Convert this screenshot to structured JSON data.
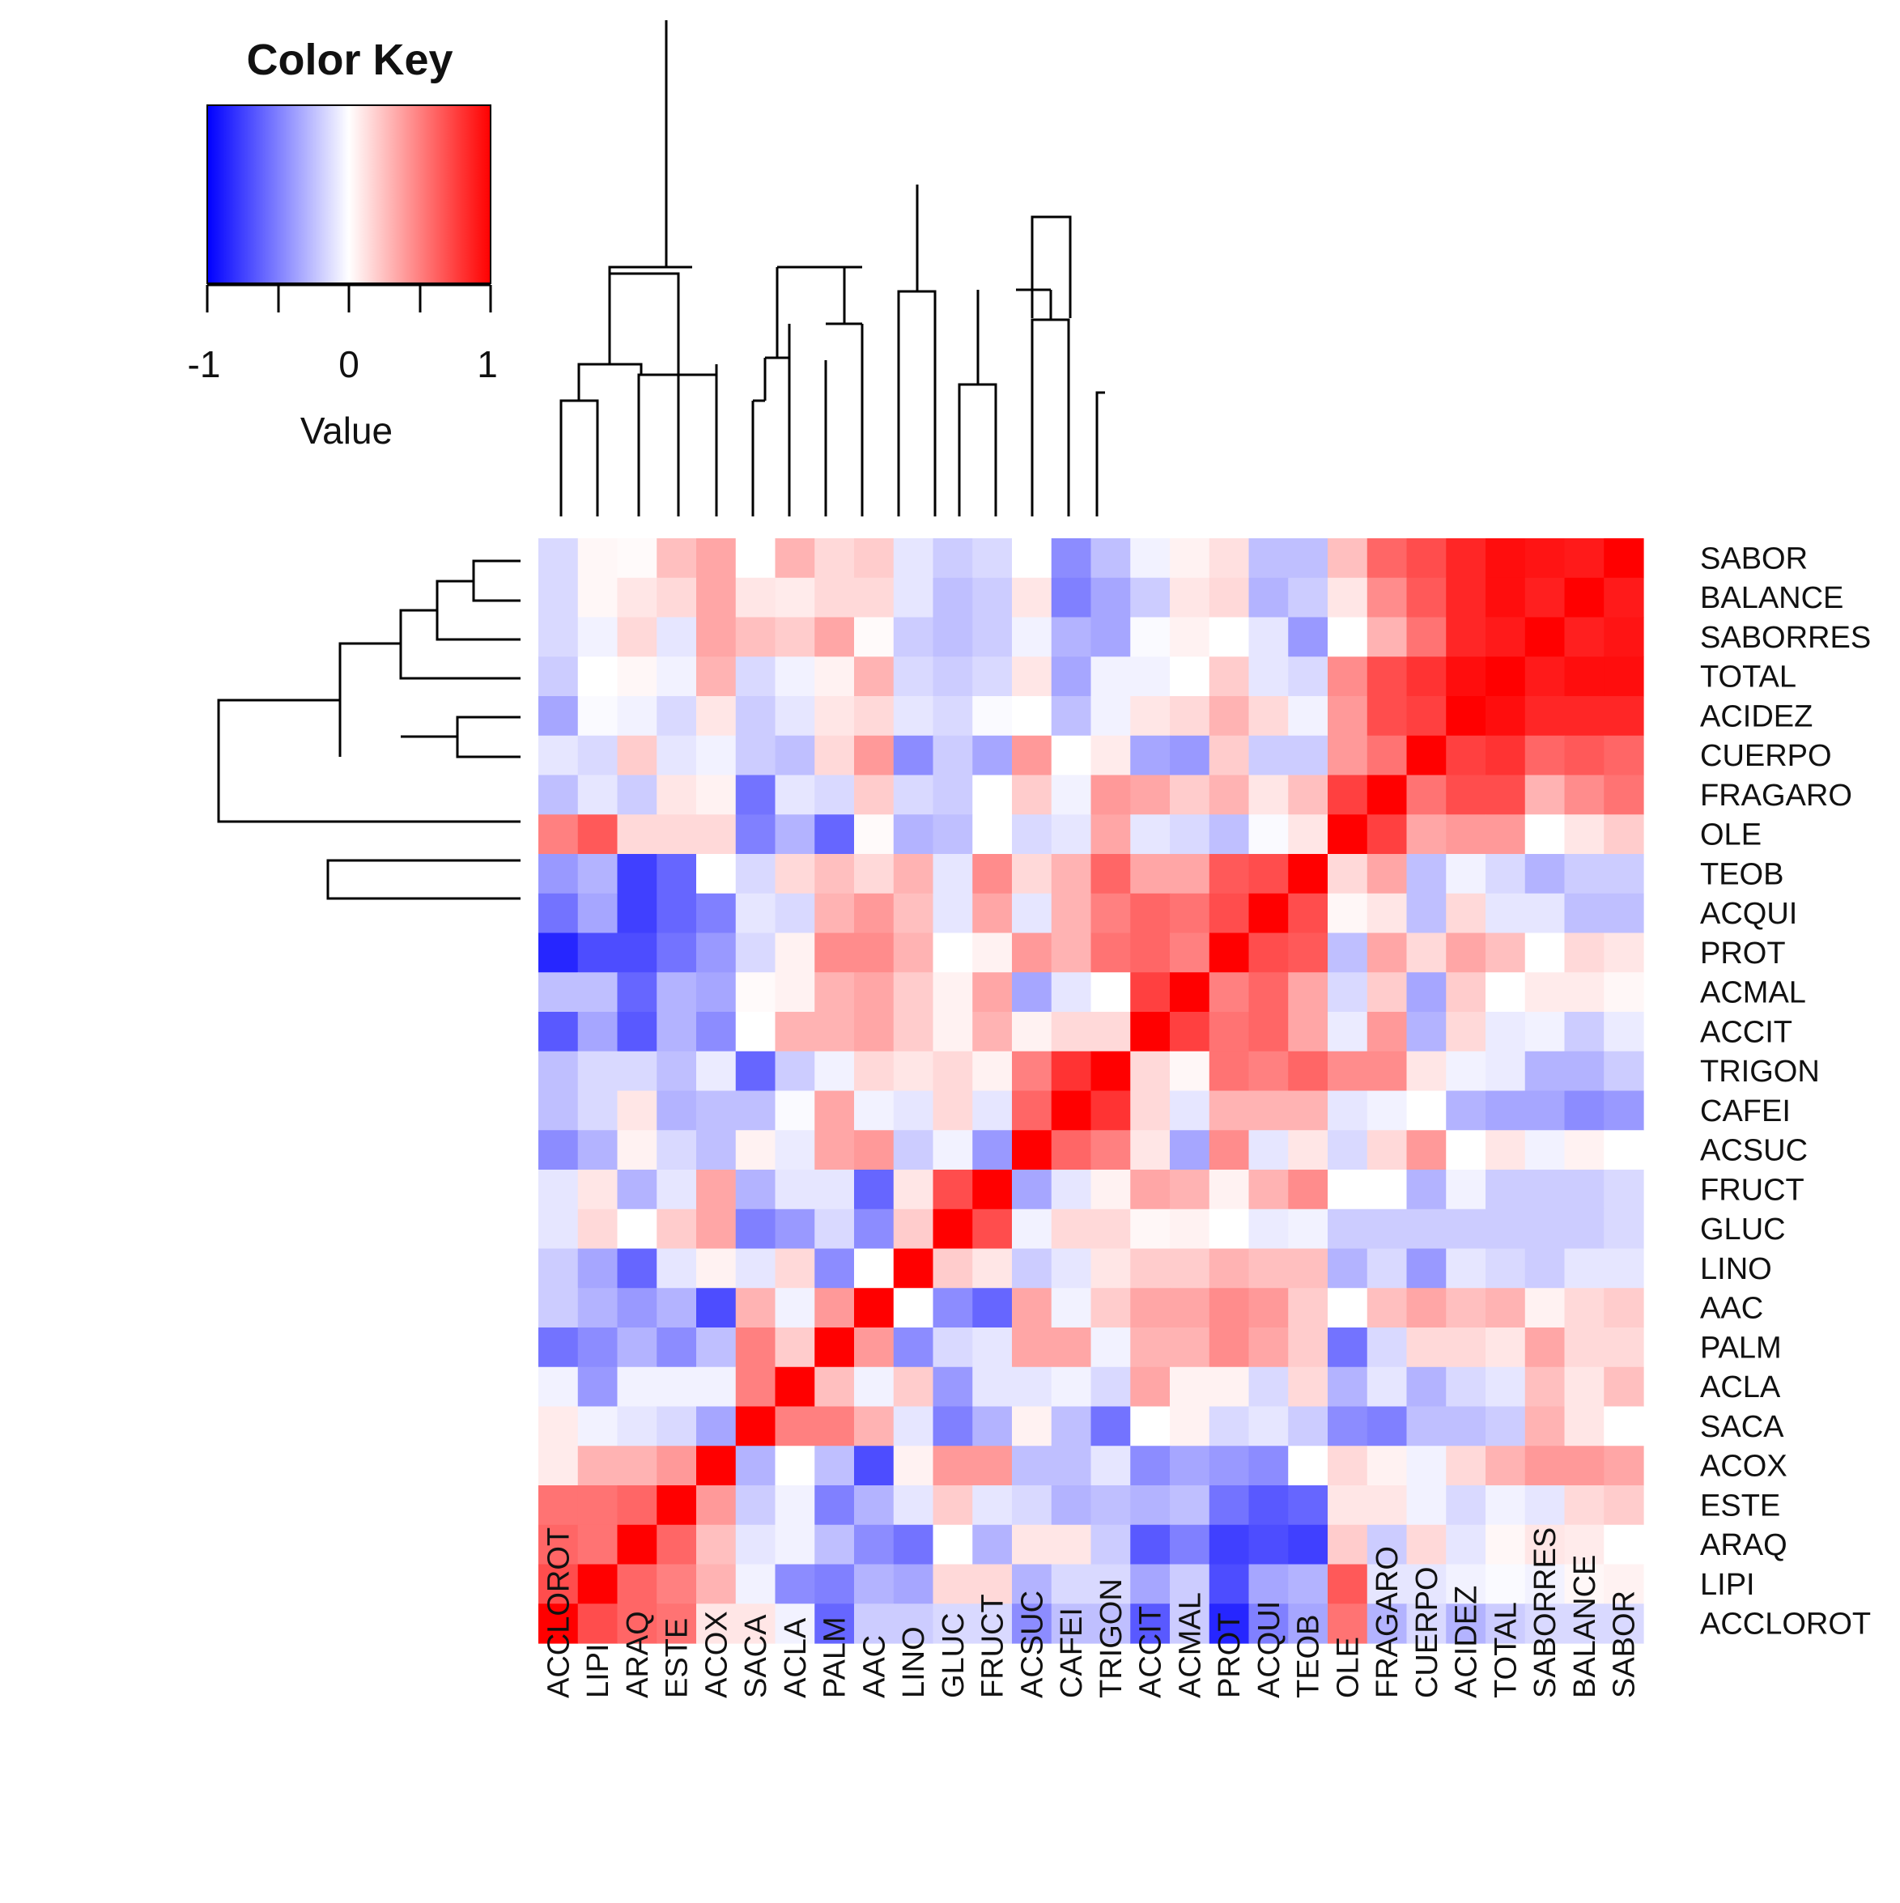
{
  "chart_data": {
    "type": "heatmap",
    "subtype": "clustered correlation matrix",
    "columns": [
      "ACCLOROT",
      "LIPI",
      "ARAQ",
      "ESTE",
      "ACOX",
      "SACA",
      "ACLA",
      "PALM",
      "AAC",
      "LINO",
      "GLUC",
      "FRUCT",
      "ACSUC",
      "CAFEI",
      "TRIGON",
      "ACCIT",
      "ACMAL",
      "PROT",
      "ACQUI",
      "TEOB",
      "OLE",
      "FRAGARO",
      "CUERPO",
      "ACIDEZ",
      "TOTAL",
      "SABORRES",
      "BALANCE",
      "SABOR"
    ],
    "rows": [
      "SABOR",
      "BALANCE",
      "SABORRES",
      "TOTAL",
      "ACIDEZ",
      "CUERPO",
      "FRAGARO",
      "OLE",
      "TEOB",
      "ACQUI",
      "PROT",
      "ACMAL",
      "ACCIT",
      "TRIGON",
      "CAFEI",
      "ACSUC",
      "FRUCT",
      "GLUC",
      "LINO",
      "AAC",
      "PALM",
      "ACLA",
      "SACA",
      "ACOX",
      "ESTE",
      "ARAQ",
      "LIPI",
      "ACCLOROT"
    ],
    "value_range": [
      -1,
      1
    ],
    "values": [
      [
        -0.15,
        0.03,
        0.02,
        0.25,
        0.35,
        0.0,
        0.3,
        0.15,
        0.2,
        -0.1,
        -0.2,
        -0.15,
        0.0,
        -0.45,
        -0.25,
        -0.05,
        0.05,
        0.12,
        -0.25,
        -0.25,
        0.25,
        0.6,
        0.7,
        0.85,
        0.95,
        0.92,
        0.9,
        1.0
      ],
      [
        -0.15,
        0.03,
        0.1,
        0.15,
        0.35,
        0.1,
        0.08,
        0.15,
        0.15,
        -0.1,
        -0.25,
        -0.2,
        0.1,
        -0.5,
        -0.35,
        -0.2,
        0.1,
        0.15,
        -0.3,
        -0.2,
        0.1,
        0.45,
        0.65,
        0.85,
        0.95,
        0.88,
        1.0,
        0.9
      ],
      [
        -0.15,
        -0.05,
        0.15,
        -0.1,
        0.35,
        0.25,
        0.2,
        0.35,
        0.02,
        -0.2,
        -0.25,
        -0.2,
        -0.05,
        -0.3,
        -0.35,
        -0.02,
        0.05,
        0.0,
        -0.1,
        -0.4,
        0.0,
        0.3,
        0.55,
        0.85,
        0.9,
        1.0,
        0.88,
        0.92
      ],
      [
        -0.2,
        0.0,
        0.03,
        -0.05,
        0.3,
        -0.15,
        -0.05,
        0.05,
        0.3,
        -0.15,
        -0.2,
        -0.15,
        0.1,
        -0.35,
        -0.05,
        -0.05,
        0.0,
        0.2,
        -0.1,
        -0.15,
        0.45,
        0.7,
        0.8,
        0.95,
        1.0,
        0.9,
        0.95,
        0.95
      ],
      [
        -0.35,
        -0.02,
        -0.05,
        -0.15,
        0.1,
        -0.2,
        -0.1,
        0.1,
        0.15,
        -0.1,
        -0.15,
        -0.02,
        0.0,
        -0.25,
        -0.05,
        0.1,
        0.15,
        0.3,
        0.15,
        -0.05,
        0.4,
        0.7,
        0.75,
        1.0,
        0.95,
        0.85,
        0.85,
        0.85
      ],
      [
        -0.1,
        -0.15,
        0.2,
        -0.1,
        -0.05,
        -0.2,
        -0.25,
        0.15,
        0.4,
        -0.45,
        -0.2,
        -0.35,
        0.4,
        0.0,
        0.08,
        -0.35,
        -0.4,
        0.2,
        -0.2,
        -0.2,
        0.4,
        0.55,
        1.0,
        0.75,
        0.8,
        0.6,
        0.65,
        0.6
      ],
      [
        -0.25,
        -0.1,
        -0.2,
        0.1,
        0.05,
        -0.55,
        -0.1,
        -0.15,
        0.2,
        -0.15,
        -0.2,
        0.0,
        0.2,
        -0.05,
        0.4,
        0.35,
        0.2,
        0.3,
        0.1,
        0.25,
        0.75,
        1.0,
        0.55,
        0.7,
        0.7,
        0.3,
        0.45,
        0.55
      ],
      [
        0.5,
        0.65,
        0.15,
        0.15,
        0.15,
        -0.5,
        -0.3,
        -0.6,
        0.02,
        -0.3,
        -0.25,
        0.0,
        -0.15,
        -0.1,
        0.35,
        -0.1,
        -0.15,
        -0.25,
        -0.02,
        0.1,
        1.0,
        0.75,
        0.35,
        0.4,
        0.4,
        0.0,
        0.1,
        0.2
      ],
      [
        -0.4,
        -0.3,
        -0.75,
        -0.6,
        0.0,
        -0.15,
        0.15,
        0.25,
        0.15,
        0.3,
        -0.1,
        0.45,
        0.15,
        0.3,
        0.6,
        0.35,
        0.35,
        0.65,
        0.7,
        1.0,
        0.15,
        0.35,
        -0.25,
        -0.05,
        -0.15,
        -0.3,
        -0.2,
        -0.2
      ],
      [
        -0.55,
        -0.35,
        -0.75,
        -0.6,
        -0.5,
        -0.1,
        -0.15,
        0.3,
        0.4,
        0.25,
        -0.1,
        0.35,
        -0.1,
        0.3,
        0.5,
        0.6,
        0.55,
        0.7,
        1.0,
        0.7,
        0.03,
        0.1,
        -0.25,
        0.15,
        -0.1,
        -0.1,
        -0.25,
        -0.25
      ],
      [
        -0.85,
        -0.7,
        -0.7,
        -0.55,
        -0.4,
        -0.15,
        0.05,
        0.45,
        0.45,
        0.3,
        0.0,
        0.05,
        0.4,
        0.3,
        0.55,
        0.6,
        0.5,
        1.0,
        0.7,
        0.65,
        -0.25,
        0.35,
        0.15,
        0.35,
        0.25,
        0.0,
        0.15,
        0.1
      ],
      [
        -0.25,
        -0.25,
        -0.6,
        -0.3,
        -0.35,
        0.02,
        0.05,
        0.3,
        0.35,
        0.2,
        0.05,
        0.35,
        -0.35,
        -0.1,
        0.0,
        0.75,
        1.0,
        0.5,
        0.6,
        0.35,
        -0.15,
        0.2,
        -0.35,
        0.2,
        0.0,
        0.08,
        0.08,
        0.03
      ],
      [
        -0.65,
        -0.35,
        -0.65,
        -0.3,
        -0.45,
        0.0,
        0.3,
        0.3,
        0.35,
        0.2,
        0.05,
        0.3,
        0.05,
        0.15,
        0.15,
        1.0,
        0.75,
        0.55,
        0.6,
        0.35,
        -0.08,
        0.4,
        -0.3,
        0.15,
        -0.08,
        -0.05,
        -0.2,
        -0.08
      ],
      [
        -0.25,
        -0.15,
        -0.15,
        -0.25,
        -0.08,
        -0.6,
        -0.2,
        -0.05,
        0.15,
        0.1,
        0.15,
        0.05,
        0.5,
        0.8,
        1.0,
        0.15,
        0.03,
        0.55,
        0.5,
        0.6,
        0.45,
        0.45,
        0.1,
        -0.05,
        -0.08,
        -0.3,
        -0.3,
        -0.2
      ],
      [
        -0.25,
        -0.15,
        0.1,
        -0.3,
        -0.25,
        -0.25,
        -0.02,
        0.35,
        -0.05,
        -0.1,
        0.15,
        -0.1,
        0.6,
        1.0,
        0.8,
        0.15,
        -0.1,
        0.3,
        0.3,
        0.3,
        -0.1,
        -0.05,
        0.0,
        -0.3,
        -0.35,
        -0.35,
        -0.45,
        -0.4
      ],
      [
        -0.45,
        -0.3,
        0.05,
        -0.15,
        -0.25,
        0.05,
        -0.08,
        0.35,
        0.4,
        -0.2,
        -0.05,
        -0.4,
        1.0,
        0.6,
        0.5,
        0.1,
        -0.35,
        0.45,
        -0.1,
        0.1,
        -0.15,
        0.15,
        0.4,
        0.0,
        0.1,
        -0.05,
        0.05,
        0.0
      ],
      [
        -0.1,
        0.1,
        -0.3,
        -0.1,
        0.35,
        -0.3,
        -0.1,
        -0.1,
        -0.6,
        0.1,
        0.7,
        1.0,
        -0.35,
        -0.1,
        0.05,
        0.35,
        0.3,
        0.05,
        0.3,
        0.45,
        0.0,
        0.0,
        -0.3,
        -0.05,
        -0.2,
        -0.2,
        -0.2,
        -0.15
      ],
      [
        -0.1,
        0.15,
        0.0,
        0.2,
        0.35,
        -0.5,
        -0.4,
        -0.15,
        -0.45,
        0.2,
        1.0,
        0.7,
        -0.05,
        0.15,
        0.15,
        0.03,
        0.05,
        0.0,
        -0.08,
        -0.05,
        -0.2,
        -0.2,
        -0.2,
        -0.2,
        -0.2,
        -0.2,
        -0.2,
        -0.15
      ],
      [
        -0.2,
        -0.35,
        -0.6,
        -0.1,
        0.05,
        -0.1,
        0.15,
        -0.45,
        0.0,
        1.0,
        0.2,
        0.1,
        -0.2,
        -0.1,
        0.1,
        0.2,
        0.2,
        0.3,
        0.25,
        0.25,
        -0.3,
        -0.15,
        -0.4,
        -0.1,
        -0.15,
        -0.2,
        -0.1,
        -0.1
      ],
      [
        -0.2,
        -0.3,
        -0.4,
        -0.3,
        -0.7,
        0.3,
        -0.05,
        0.4,
        1.0,
        0.0,
        -0.45,
        -0.6,
        0.35,
        -0.05,
        0.2,
        0.35,
        0.35,
        0.45,
        0.4,
        0.2,
        0.0,
        0.25,
        0.35,
        0.25,
        0.3,
        0.05,
        0.15,
        0.2
      ],
      [
        -0.55,
        -0.45,
        -0.3,
        -0.45,
        -0.25,
        0.5,
        0.2,
        1.0,
        0.4,
        -0.45,
        -0.15,
        -0.1,
        0.35,
        0.35,
        -0.05,
        0.3,
        0.3,
        0.45,
        0.35,
        0.2,
        -0.55,
        -0.15,
        0.15,
        0.15,
        0.1,
        0.35,
        0.15,
        0.15
      ],
      [
        -0.05,
        -0.4,
        -0.05,
        -0.05,
        -0.05,
        0.5,
        1.0,
        0.25,
        -0.05,
        0.2,
        -0.4,
        -0.1,
        -0.1,
        -0.05,
        -0.15,
        0.35,
        0.05,
        0.05,
        -0.15,
        0.15,
        -0.3,
        -0.1,
        -0.3,
        -0.15,
        -0.1,
        0.25,
        0.1,
        0.25
      ],
      [
        0.08,
        -0.05,
        -0.1,
        -0.15,
        -0.35,
        1.0,
        0.5,
        0.5,
        0.3,
        -0.1,
        -0.5,
        -0.3,
        0.05,
        -0.25,
        -0.55,
        0.0,
        0.05,
        -0.15,
        -0.1,
        -0.2,
        -0.45,
        -0.5,
        -0.25,
        -0.25,
        -0.2,
        0.3,
        0.1,
        0.0
      ],
      [
        0.08,
        0.3,
        0.3,
        0.4,
        1.0,
        -0.3,
        0.0,
        -0.25,
        -0.7,
        0.05,
        0.4,
        0.4,
        -0.25,
        -0.25,
        -0.1,
        -0.45,
        -0.35,
        -0.4,
        -0.45,
        0.0,
        0.15,
        0.05,
        -0.05,
        0.15,
        0.3,
        0.4,
        0.4,
        0.35
      ],
      [
        0.55,
        0.55,
        0.6,
        1.0,
        0.4,
        -0.2,
        -0.05,
        -0.5,
        -0.3,
        -0.1,
        0.2,
        -0.1,
        -0.15,
        -0.3,
        -0.25,
        -0.3,
        -0.25,
        -0.55,
        -0.65,
        -0.6,
        0.1,
        0.1,
        -0.05,
        -0.15,
        -0.05,
        -0.1,
        0.15,
        0.2
      ],
      [
        0.6,
        0.55,
        1.0,
        0.6,
        0.25,
        -0.1,
        -0.05,
        -0.25,
        -0.45,
        -0.55,
        0.0,
        -0.3,
        0.1,
        0.1,
        -0.2,
        -0.65,
        -0.5,
        -0.75,
        -0.7,
        -0.75,
        0.2,
        -0.2,
        0.15,
        -0.1,
        0.03,
        0.1,
        0.08,
        0.0
      ],
      [
        0.7,
        1.0,
        0.6,
        0.5,
        0.3,
        -0.05,
        -0.45,
        -0.5,
        -0.3,
        -0.35,
        0.15,
        0.15,
        -0.3,
        -0.15,
        -0.15,
        -0.35,
        -0.2,
        -0.7,
        -0.35,
        -0.3,
        0.65,
        -0.1,
        -0.1,
        -0.05,
        -0.02,
        -0.05,
        0.03,
        0.05
      ],
      [
        1.0,
        0.7,
        0.6,
        0.55,
        0.1,
        0.1,
        -0.05,
        -0.6,
        -0.2,
        -0.2,
        -0.15,
        -0.15,
        -0.45,
        -0.25,
        -0.25,
        -0.65,
        -0.2,
        -0.85,
        -0.5,
        -0.35,
        0.55,
        -0.3,
        -0.15,
        -0.3,
        -0.2,
        -0.15,
        -0.15,
        -0.15
      ]
    ],
    "color_key": {
      "title": "Color Key",
      "axis_label": "Value",
      "ticks": [
        "-1",
        "0",
        "1"
      ],
      "low_color": "#0000ff",
      "mid_color": "#ffffff",
      "high_color": "#ff0000"
    }
  }
}
